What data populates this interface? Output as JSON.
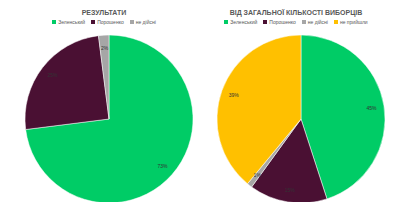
{
  "chart_data": [
    {
      "type": "pie",
      "title": "РЕЗУЛЬТАТИ",
      "categories": [
        "Зеленський",
        "Порошенко",
        "не дійсні"
      ],
      "values": [
        73,
        25,
        2
      ],
      "value_labels": [
        "73%",
        "25%",
        "2%"
      ],
      "colors": [
        "#00cc66",
        "#4a1033",
        "#a6a6a6"
      ],
      "data_labels": true,
      "legend": "top"
    },
    {
      "type": "pie",
      "title": "ВІД ЗАГАЛЬНОЇ КІЛЬКОСТІ ВИБОРЦІВ",
      "categories": [
        "Зеленський",
        "Порошенко",
        "не дійсні",
        "не прийшли"
      ],
      "values": [
        45,
        15,
        1,
        39
      ],
      "value_labels": [
        "45%",
        "15%",
        "1%",
        "39%"
      ],
      "colors": [
        "#00cc66",
        "#4a1033",
        "#a6a6a6",
        "#ffc000"
      ],
      "data_labels": true,
      "legend": "top"
    }
  ]
}
